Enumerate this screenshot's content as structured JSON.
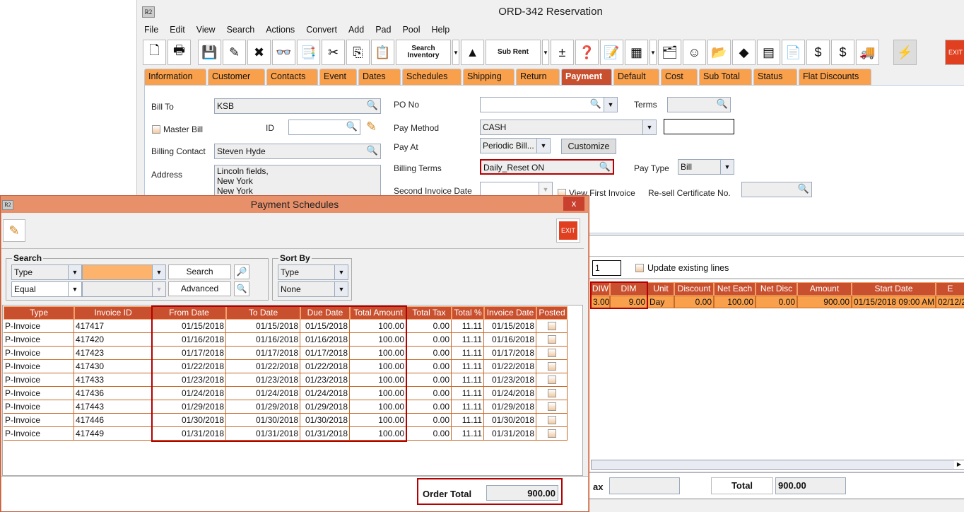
{
  "window": {
    "title": "ORD-342 Reservation",
    "app_icon": "R2"
  },
  "menu": [
    "File",
    "Edit",
    "View",
    "Search",
    "Actions",
    "Convert",
    "Add",
    "Pad",
    "Pool",
    "Help"
  ],
  "toolbar": {
    "buttons": [
      {
        "name": "new-icon",
        "glyph": "🗋"
      },
      {
        "name": "print-icon",
        "glyph": "🖶"
      },
      {
        "name": "save-icon",
        "glyph": "💾"
      },
      {
        "name": "edit-pencil-icon",
        "glyph": "✎"
      },
      {
        "name": "delete-icon",
        "glyph": "✖"
      },
      {
        "name": "binoculars-icon",
        "glyph": "👓"
      },
      {
        "name": "convert-doc-icon",
        "glyph": "📑"
      },
      {
        "name": "cut-icon",
        "glyph": "✂"
      },
      {
        "name": "copy-icon",
        "glyph": "⎘"
      },
      {
        "name": "paste-icon",
        "glyph": "📋"
      }
    ],
    "search_inventory": "Search Inventory",
    "sub_rent": "Sub Rent",
    "buttons2": [
      {
        "name": "add-remove-icon",
        "glyph": "±"
      },
      {
        "name": "help-balls-icon",
        "glyph": "❓"
      },
      {
        "name": "notepad-icon",
        "glyph": "📝"
      },
      {
        "name": "grid-icon",
        "glyph": "▦"
      }
    ],
    "buttons3": [
      {
        "name": "org-chart-icon",
        "glyph": "🗂"
      },
      {
        "name": "smiley-icon",
        "glyph": "☺"
      },
      {
        "name": "folder-check-icon",
        "glyph": "📂"
      },
      {
        "name": "eraser-icon",
        "glyph": "◆"
      },
      {
        "name": "chart-icon",
        "glyph": "▤"
      },
      {
        "name": "note-edit-icon",
        "glyph": "📄"
      },
      {
        "name": "dollar-arrow-icon",
        "glyph": "$"
      },
      {
        "name": "coins-icon",
        "glyph": "$"
      },
      {
        "name": "truck-icon",
        "glyph": "🚚"
      }
    ],
    "lightning_icon": "⚡",
    "exit_label": "EXIT"
  },
  "tabs": [
    "Information",
    "Customer",
    "Contacts",
    "Event",
    "Dates",
    "Schedules",
    "Shipping",
    "Return",
    "Payment",
    "Default",
    "Cost",
    "Sub Total",
    "Status",
    "Flat Discounts"
  ],
  "active_tab": "Payment",
  "form": {
    "bill_to_label": "Bill To",
    "bill_to": "KSB",
    "master_bill_label": "Master Bill",
    "id_label": "ID",
    "id_value": "",
    "billing_contact_label": "Billing Contact",
    "billing_contact": "Steven Hyde",
    "address_label": "Address",
    "address_lines": [
      "Lincoln fields,",
      "New York",
      "New York"
    ],
    "po_no_label": "PO No",
    "po_no": "",
    "terms_label": "Terms",
    "terms": "",
    "pay_method_label": "Pay Method",
    "pay_method": "CASH",
    "pay_at_label": "Pay At",
    "pay_at": "Periodic Bill...",
    "customize_label": "Customize",
    "billing_terms_label": "Billing Terms",
    "billing_terms": "Daily_Reset ON",
    "pay_type_label": "Pay Type",
    "pay_type": "Bill",
    "second_invoice_date_label": "Second Invoice Date",
    "view_first_invoice_label": "View First Invoice",
    "resell_label": "Re-sell Certificate No."
  },
  "lines": {
    "qty": "1",
    "update_existing_label": "Update existing lines",
    "columns": [
      "DIW",
      "DIM",
      "Unit",
      "Discount",
      "Net Each",
      "Net Disc",
      "Amount",
      "Start Date",
      "E"
    ],
    "rows": [
      [
        "3.00",
        "9.00",
        "Day",
        "0.00",
        "100.00",
        "0.00",
        "900.00",
        "01/15/2018 09:00 AM",
        "02/12/2"
      ]
    ],
    "tax_label": "ax",
    "total_label": "Total",
    "total": "900.00"
  },
  "popup": {
    "title": "Payment Schedules",
    "app_icon": "R2",
    "close": "x",
    "exit_label": "EXIT",
    "search_group": "Search",
    "search_field": "Type",
    "search_op": "Equal",
    "search_value": "",
    "search_button": "Search",
    "advanced_button": "Advanced",
    "sort_group": "Sort By",
    "sort_field": "Type",
    "sort_order": "None",
    "columns": [
      "Type",
      "Invoice ID",
      "From Date",
      "To Date",
      "Due Date",
      "Total Amount",
      "Total Tax",
      "Total %",
      "Invoice Date",
      "Posted"
    ],
    "rows": [
      [
        "P-Invoice",
        "417417",
        "01/15/2018",
        "01/15/2018",
        "01/15/2018",
        "100.00",
        "0.00",
        "11.11",
        "01/15/2018"
      ],
      [
        "P-Invoice",
        "417420",
        "01/16/2018",
        "01/16/2018",
        "01/16/2018",
        "100.00",
        "0.00",
        "11.11",
        "01/16/2018"
      ],
      [
        "P-Invoice",
        "417423",
        "01/17/2018",
        "01/17/2018",
        "01/17/2018",
        "100.00",
        "0.00",
        "11.11",
        "01/17/2018"
      ],
      [
        "P-Invoice",
        "417430",
        "01/22/2018",
        "01/22/2018",
        "01/22/2018",
        "100.00",
        "0.00",
        "11.11",
        "01/22/2018"
      ],
      [
        "P-Invoice",
        "417433",
        "01/23/2018",
        "01/23/2018",
        "01/23/2018",
        "100.00",
        "0.00",
        "11.11",
        "01/23/2018"
      ],
      [
        "P-Invoice",
        "417436",
        "01/24/2018",
        "01/24/2018",
        "01/24/2018",
        "100.00",
        "0.00",
        "11.11",
        "01/24/2018"
      ],
      [
        "P-Invoice",
        "417443",
        "01/29/2018",
        "01/29/2018",
        "01/29/2018",
        "100.00",
        "0.00",
        "11.11",
        "01/29/2018"
      ],
      [
        "P-Invoice",
        "417446",
        "01/30/2018",
        "01/30/2018",
        "01/30/2018",
        "100.00",
        "0.00",
        "11.11",
        "01/30/2018"
      ],
      [
        "P-Invoice",
        "417449",
        "01/31/2018",
        "01/31/2018",
        "01/31/2018",
        "100.00",
        "0.00",
        "11.11",
        "01/31/2018"
      ]
    ],
    "order_total_label": "Order Total",
    "order_total": "900.00"
  },
  "colors": {
    "header": "#c9502f",
    "row": "#f9a04c",
    "highlight": "#b40000",
    "popup_frame": "#e8906a"
  }
}
